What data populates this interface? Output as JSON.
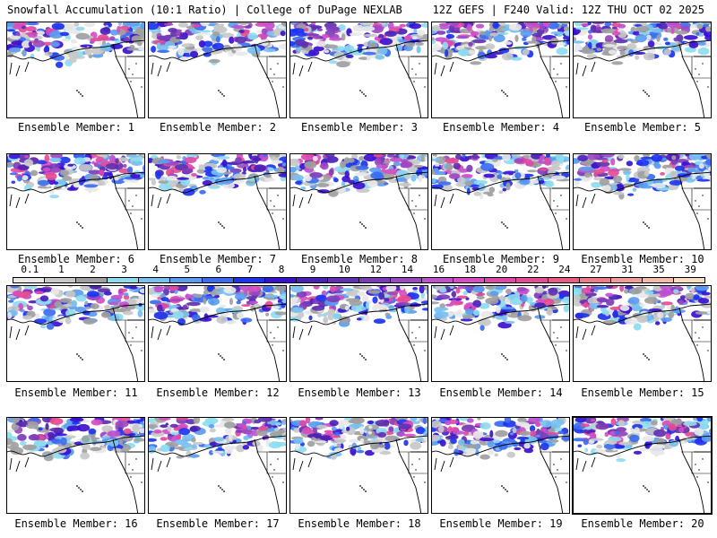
{
  "header": {
    "left_title": "Snowfall Accumulation (10:1 Ratio) | College of DuPage NEXLAB",
    "right_title": "12Z GEFS | F240 Valid: 12Z THU OCT 02 2025"
  },
  "colorbar": {
    "labels": [
      "0.1",
      "1",
      "2",
      "3",
      "4",
      "5",
      "6",
      "7",
      "8",
      "9",
      "10",
      "12",
      "14",
      "16",
      "18",
      "20",
      "22",
      "24",
      "27",
      "31",
      "35",
      "39"
    ],
    "colors": [
      "#e8e8e8",
      "#c8c8c8",
      "#a0a0a0",
      "#8cdcf0",
      "#78c0f0",
      "#5a9cf0",
      "#3c6cf0",
      "#1c34f0",
      "#3a10d0",
      "#4a20b8",
      "#6030b0",
      "#7c3cb8",
      "#9c48c0",
      "#c050d0",
      "#d84cc4",
      "#e048a8",
      "#e44c94",
      "#e85c84",
      "#ec7c8c",
      "#f09c98",
      "#f4bca8",
      "#f8dcc0"
    ]
  },
  "panels": [
    {
      "label": "Ensemble Member: 1"
    },
    {
      "label": "Ensemble Member: 2"
    },
    {
      "label": "Ensemble Member: 3"
    },
    {
      "label": "Ensemble Member: 4"
    },
    {
      "label": "Ensemble Member: 5"
    },
    {
      "label": "Ensemble Member: 6"
    },
    {
      "label": "Ensemble Member: 7"
    },
    {
      "label": "Ensemble Member: 8"
    },
    {
      "label": "Ensemble Member: 9"
    },
    {
      "label": "Ensemble Member: 10"
    },
    {
      "label": "Ensemble Member: 11"
    },
    {
      "label": "Ensemble Member: 12"
    },
    {
      "label": "Ensemble Member: 13"
    },
    {
      "label": "Ensemble Member: 14"
    },
    {
      "label": "Ensemble Member: 15"
    },
    {
      "label": "Ensemble Member: 16"
    },
    {
      "label": "Ensemble Member: 17"
    },
    {
      "label": "Ensemble Member: 18"
    },
    {
      "label": "Ensemble Member: 19"
    },
    {
      "label": "Ensemble Member: 20"
    }
  ],
  "selected_panel": 20
}
